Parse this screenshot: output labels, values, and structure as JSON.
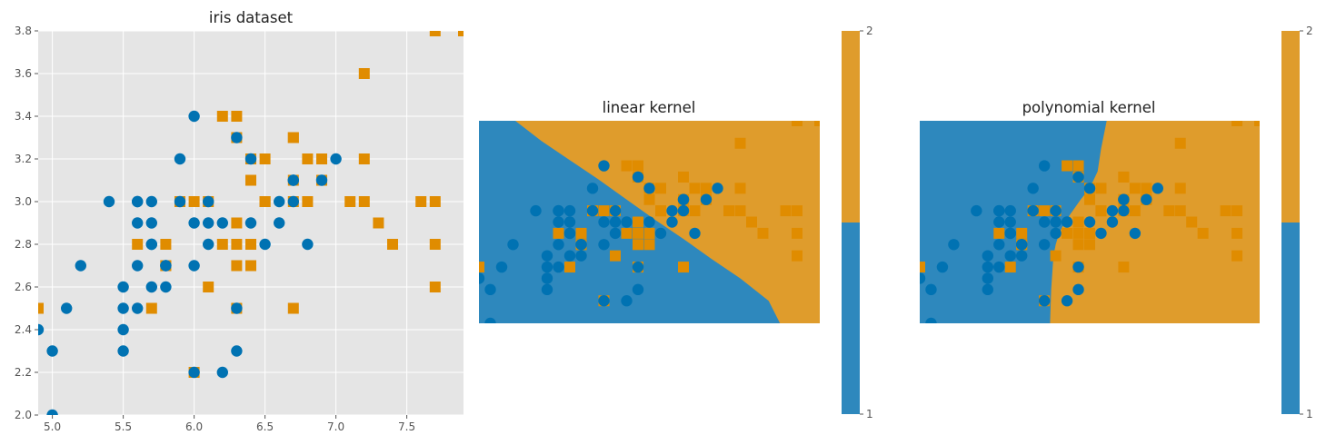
{
  "colors": {
    "class1": "#0072b2",
    "class2": "#e08c00",
    "region1": "#2e88bd",
    "region2": "#df9c2c",
    "panel_bg": "#e5e5e5"
  },
  "chart_data": [
    {
      "type": "scatter",
      "title": "iris dataset",
      "xlabel": "",
      "ylabel": "",
      "xlim": [
        4.9,
        7.9
      ],
      "ylim": [
        2.0,
        3.8
      ],
      "xticks": [
        "5.0",
        "5.5",
        "6.0",
        "6.5",
        "7.0",
        "7.5"
      ],
      "yticks": [
        "2.0",
        "2.2",
        "2.4",
        "2.6",
        "2.8",
        "3.0",
        "3.2",
        "3.4",
        "3.6",
        "3.8"
      ],
      "grid": true,
      "series": [
        {
          "marker": "circle",
          "points": [
            [
              7.0,
              3.2
            ],
            [
              6.4,
              3.2
            ],
            [
              6.9,
              3.1
            ],
            [
              5.5,
              2.3
            ],
            [
              6.5,
              2.8
            ],
            [
              5.7,
              2.8
            ],
            [
              6.3,
              3.3
            ],
            [
              4.9,
              2.4
            ],
            [
              6.6,
              2.9
            ],
            [
              5.2,
              2.7
            ],
            [
              5.0,
              2.0
            ],
            [
              5.9,
              3.0
            ],
            [
              6.0,
              2.2
            ],
            [
              6.1,
              2.9
            ],
            [
              5.6,
              2.9
            ],
            [
              6.7,
              3.1
            ],
            [
              5.6,
              3.0
            ],
            [
              5.8,
              2.7
            ],
            [
              6.2,
              2.2
            ],
            [
              5.6,
              2.5
            ],
            [
              5.9,
              3.2
            ],
            [
              6.1,
              2.8
            ],
            [
              6.3,
              2.5
            ],
            [
              6.4,
              2.9
            ],
            [
              6.6,
              3.0
            ],
            [
              6.8,
              2.8
            ],
            [
              6.7,
              3.0
            ],
            [
              6.0,
              2.9
            ],
            [
              5.7,
              2.6
            ],
            [
              5.5,
              2.4
            ],
            [
              5.8,
              2.7
            ],
            [
              6.0,
              2.7
            ],
            [
              5.4,
              3.0
            ],
            [
              6.0,
              3.4
            ],
            [
              6.7,
              3.1
            ],
            [
              6.3,
              2.3
            ],
            [
              5.6,
              3.0
            ],
            [
              5.5,
              2.5
            ],
            [
              5.5,
              2.6
            ],
            [
              6.1,
              3.0
            ],
            [
              5.8,
              2.6
            ],
            [
              5.0,
              2.3
            ],
            [
              5.6,
              2.7
            ],
            [
              5.7,
              3.0
            ],
            [
              5.7,
              2.9
            ],
            [
              6.2,
              2.9
            ],
            [
              5.1,
              2.5
            ],
            [
              5.7,
              2.8
            ]
          ]
        },
        {
          "marker": "square",
          "points": [
            [
              6.3,
              3.3
            ],
            [
              5.8,
              2.7
            ],
            [
              7.1,
              3.0
            ],
            [
              6.3,
              2.9
            ],
            [
              6.5,
              3.0
            ],
            [
              7.6,
              3.0
            ],
            [
              4.9,
              2.5
            ],
            [
              7.3,
              2.9
            ],
            [
              6.7,
              2.5
            ],
            [
              7.2,
              3.6
            ],
            [
              6.5,
              3.2
            ],
            [
              6.4,
              2.7
            ],
            [
              6.8,
              3.0
            ],
            [
              5.7,
              2.5
            ],
            [
              5.8,
              2.8
            ],
            [
              6.4,
              3.2
            ],
            [
              6.5,
              3.0
            ],
            [
              7.7,
              3.8
            ],
            [
              7.7,
              2.6
            ],
            [
              6.0,
              2.2
            ],
            [
              6.9,
              3.2
            ],
            [
              5.6,
              2.8
            ],
            [
              7.7,
              2.8
            ],
            [
              6.3,
              2.7
            ],
            [
              6.7,
              3.3
            ],
            [
              7.2,
              3.2
            ],
            [
              6.2,
              2.8
            ],
            [
              6.1,
              3.0
            ],
            [
              6.4,
              2.8
            ],
            [
              7.2,
              3.0
            ],
            [
              7.4,
              2.8
            ],
            [
              7.9,
              3.8
            ],
            [
              6.4,
              2.8
            ],
            [
              6.3,
              2.8
            ],
            [
              6.1,
              2.6
            ],
            [
              7.7,
              3.0
            ],
            [
              6.3,
              3.4
            ],
            [
              6.4,
              3.1
            ],
            [
              6.0,
              3.0
            ],
            [
              6.9,
              3.1
            ],
            [
              6.7,
              3.1
            ],
            [
              6.9,
              3.1
            ],
            [
              5.8,
              2.7
            ],
            [
              6.8,
              3.2
            ],
            [
              6.7,
              3.3
            ],
            [
              6.7,
              3.0
            ],
            [
              6.3,
              2.5
            ],
            [
              6.5,
              3.0
            ],
            [
              6.2,
              3.4
            ],
            [
              5.9,
              3.0
            ]
          ]
        }
      ]
    },
    {
      "type": "heatmap",
      "title": "linear kernel",
      "xlim": [
        4.9,
        7.9
      ],
      "ylim": [
        2.0,
        3.8
      ],
      "boundary": "linear",
      "colorbar_ticks": [
        "1",
        "2"
      ]
    },
    {
      "type": "heatmap",
      "title": "polynomial kernel",
      "xlim": [
        4.9,
        7.9
      ],
      "ylim": [
        2.0,
        3.8
      ],
      "boundary": "polynomial",
      "colorbar_ticks": [
        "1",
        "2"
      ]
    }
  ]
}
